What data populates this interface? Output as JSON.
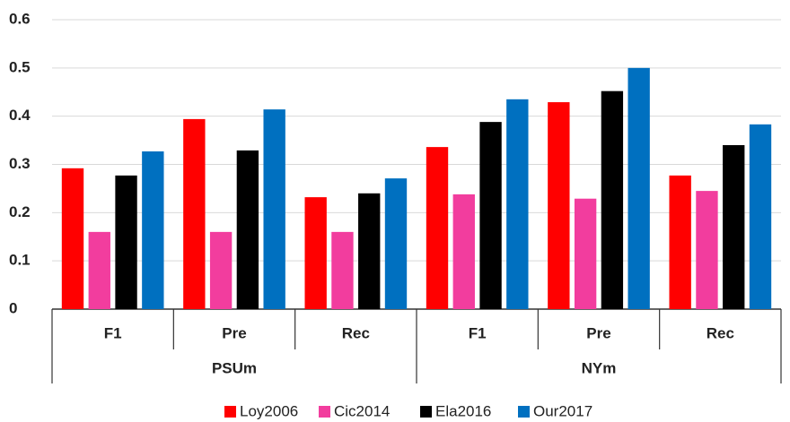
{
  "chart_data": {
    "type": "bar",
    "groups": [
      {
        "label": "PSUm",
        "categories": [
          "F1",
          "Pre",
          "Rec"
        ]
      },
      {
        "label": "NYm",
        "categories": [
          "F1",
          "Pre",
          "Rec"
        ]
      }
    ],
    "series": [
      {
        "name": "Loy2006",
        "color": "#ff0000",
        "values": [
          0.292,
          0.394,
          0.232,
          0.336,
          0.429,
          0.277
        ]
      },
      {
        "name": "Cic2014",
        "color": "#f23d9e",
        "values": [
          0.16,
          0.16,
          0.16,
          0.238,
          0.229,
          0.245
        ]
      },
      {
        "name": "Ela2016",
        "color": "#000000",
        "values": [
          0.277,
          0.329,
          0.24,
          0.388,
          0.452,
          0.34
        ]
      },
      {
        "name": "Our2017",
        "color": "#0070c0",
        "values": [
          0.327,
          0.414,
          0.271,
          0.435,
          0.5,
          0.383
        ]
      }
    ],
    "ylim": [
      0,
      0.6
    ],
    "yticks": [
      0,
      0.1,
      0.2,
      0.3,
      0.4,
      0.5,
      0.6
    ],
    "grid": true,
    "legend": "bottom"
  }
}
